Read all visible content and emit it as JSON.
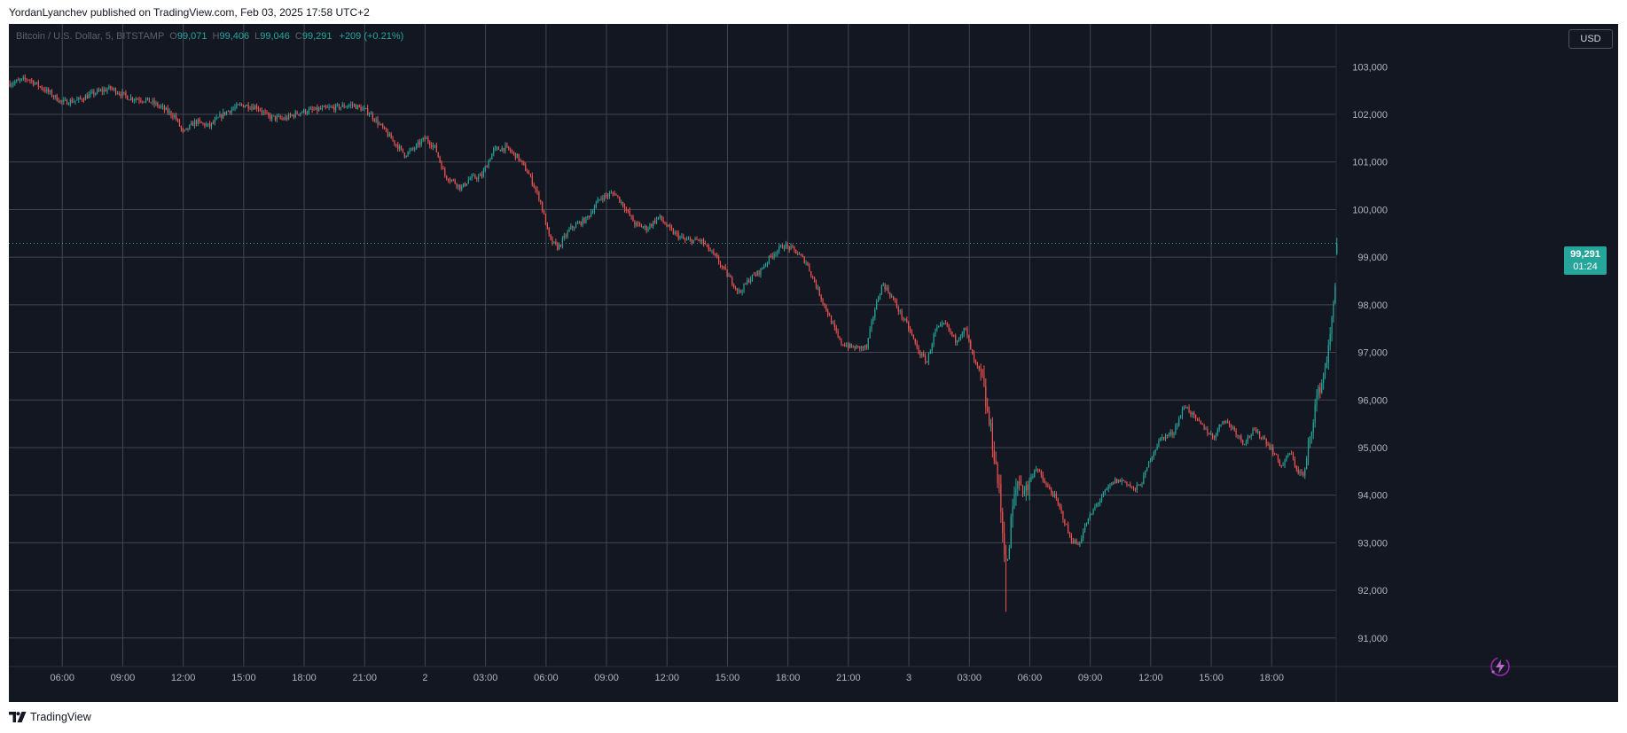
{
  "header": {
    "text": "YordanLyanchev published on TradingView.com, Feb 03, 2025 17:58 UTC+2"
  },
  "footer": {
    "brand": "TradingView"
  },
  "legend": {
    "symbol": "Bitcoin / U.S. Dollar, 5, BITSTAMP",
    "o_label": "O",
    "o_value": "99,071",
    "h_label": "H",
    "h_value": "99,406",
    "l_label": "L",
    "l_value": "99,046",
    "c_label": "C",
    "c_value": "99,291",
    "change": "+209 (+0.21%)"
  },
  "currency": "USD",
  "last_price": {
    "price": "99,291",
    "countdown": "01:24"
  },
  "colors": {
    "up": "#26a69a",
    "down": "#ef5350",
    "bg": "#131722",
    "grid": "#434651"
  },
  "chart_data": {
    "type": "candlestick",
    "symbol": "Bitcoin / U.S. Dollar",
    "interval": "5",
    "exchange": "BITSTAMP",
    "y_ticks": [
      91000,
      92000,
      93000,
      94000,
      95000,
      96000,
      97000,
      98000,
      99000,
      100000,
      101000,
      102000,
      103000
    ],
    "y_tick_labels": [
      "91,000",
      "92,000",
      "93,000",
      "94,000",
      "95,000",
      "96,000",
      "97,000",
      "98,000",
      "99,000",
      "100,000",
      "101,000",
      "102,000",
      "103,000"
    ],
    "ylim": [
      90400,
      103900
    ],
    "x_tick_labels": [
      "06:00",
      "09:00",
      "12:00",
      "15:00",
      "18:00",
      "21:00",
      "2",
      "03:00",
      "06:00",
      "09:00",
      "12:00",
      "15:00",
      "18:00",
      "21:00",
      "3",
      "03:00",
      "06:00",
      "09:00",
      "12:00",
      "15:00",
      "18:00"
    ],
    "x_tick_hours": [
      6,
      9,
      12,
      15,
      18,
      21,
      24,
      27,
      30,
      33,
      36,
      39,
      42,
      45,
      48,
      51,
      54,
      57,
      60,
      63,
      66
    ],
    "xlim_hours": [
      3.35,
      69.2
    ],
    "last_close": 99291,
    "price_path": [
      [
        3.4,
        102650
      ],
      [
        4.3,
        102750
      ],
      [
        5.2,
        102500
      ],
      [
        6.0,
        102250
      ],
      [
        6.8,
        102300
      ],
      [
        7.6,
        102450
      ],
      [
        8.4,
        102550
      ],
      [
        9.3,
        102350
      ],
      [
        10.2,
        102300
      ],
      [
        10.9,
        102150
      ],
      [
        11.6,
        101950
      ],
      [
        12.0,
        101600
      ],
      [
        12.6,
        101850
      ],
      [
        13.3,
        101750
      ],
      [
        14.1,
        102050
      ],
      [
        14.9,
        102200
      ],
      [
        15.7,
        102150
      ],
      [
        16.2,
        101950
      ],
      [
        17.0,
        101900
      ],
      [
        17.8,
        102050
      ],
      [
        18.7,
        102100
      ],
      [
        19.6,
        102150
      ],
      [
        20.4,
        102200
      ],
      [
        21.2,
        102050
      ],
      [
        21.8,
        101750
      ],
      [
        22.5,
        101400
      ],
      [
        23.0,
        101150
      ],
      [
        23.5,
        101300
      ],
      [
        24.0,
        101500
      ],
      [
        24.5,
        101300
      ],
      [
        25.0,
        100700
      ],
      [
        25.4,
        100600
      ],
      [
        25.8,
        100450
      ],
      [
        26.2,
        100650
      ],
      [
        26.8,
        100700
      ],
      [
        27.4,
        101250
      ],
      [
        28.0,
        101300
      ],
      [
        28.6,
        101100
      ],
      [
        29.2,
        100700
      ],
      [
        29.7,
        100200
      ],
      [
        30.2,
        99350
      ],
      [
        30.6,
        99200
      ],
      [
        31.2,
        99600
      ],
      [
        32.0,
        99800
      ],
      [
        32.7,
        100250
      ],
      [
        33.4,
        100350
      ],
      [
        33.9,
        100050
      ],
      [
        34.4,
        99700
      ],
      [
        35.0,
        99600
      ],
      [
        35.6,
        99850
      ],
      [
        36.2,
        99550
      ],
      [
        36.9,
        99350
      ],
      [
        37.7,
        99350
      ],
      [
        38.4,
        99000
      ],
      [
        39.2,
        98500
      ],
      [
        39.6,
        98250
      ],
      [
        40.1,
        98550
      ],
      [
        40.6,
        98700
      ],
      [
        41.2,
        99050
      ],
      [
        41.8,
        99250
      ],
      [
        42.3,
        99150
      ],
      [
        42.9,
        98900
      ],
      [
        43.5,
        98300
      ],
      [
        44.0,
        97800
      ],
      [
        44.6,
        97200
      ],
      [
        45.2,
        97100
      ],
      [
        45.9,
        97100
      ],
      [
        46.3,
        97900
      ],
      [
        46.7,
        98450
      ],
      [
        47.1,
        98200
      ],
      [
        47.6,
        97800
      ],
      [
        48.0,
        97500
      ],
      [
        48.5,
        97000
      ],
      [
        48.9,
        96800
      ],
      [
        49.3,
        97450
      ],
      [
        49.8,
        97600
      ],
      [
        50.3,
        97250
      ],
      [
        50.8,
        97500
      ],
      [
        51.2,
        96850
      ],
      [
        51.6,
        96500
      ],
      [
        51.9,
        95700
      ],
      [
        52.2,
        95000
      ],
      [
        52.5,
        94000
      ],
      [
        52.7,
        93000
      ],
      [
        52.9,
        92500
      ],
      [
        53.1,
        93600
      ],
      [
        53.4,
        94300
      ],
      [
        53.8,
        94100
      ],
      [
        54.3,
        94600
      ],
      [
        54.8,
        94200
      ],
      [
        55.2,
        94000
      ],
      [
        55.6,
        93600
      ],
      [
        56.0,
        93100
      ],
      [
        56.4,
        92950
      ],
      [
        56.8,
        93400
      ],
      [
        57.3,
        93800
      ],
      [
        57.8,
        94100
      ],
      [
        58.2,
        94300
      ],
      [
        58.7,
        94300
      ],
      [
        59.2,
        94100
      ],
      [
        59.6,
        94300
      ],
      [
        60.0,
        94800
      ],
      [
        60.5,
        95200
      ],
      [
        61.1,
        95300
      ],
      [
        61.7,
        95900
      ],
      [
        62.2,
        95600
      ],
      [
        62.7,
        95400
      ],
      [
        63.1,
        95200
      ],
      [
        63.6,
        95600
      ],
      [
        64.1,
        95400
      ],
      [
        64.6,
        95100
      ],
      [
        65.1,
        95350
      ],
      [
        65.6,
        95200
      ],
      [
        66.1,
        94900
      ],
      [
        66.5,
        94600
      ],
      [
        66.9,
        94900
      ],
      [
        67.3,
        94500
      ],
      [
        67.6,
        94400
      ],
      [
        67.9,
        95200
      ],
      [
        68.2,
        96000
      ],
      [
        68.5,
        96400
      ],
      [
        68.8,
        97000
      ],
      [
        69.0,
        97700
      ],
      [
        69.15,
        98500
      ],
      [
        69.3,
        99050
      ]
    ]
  }
}
